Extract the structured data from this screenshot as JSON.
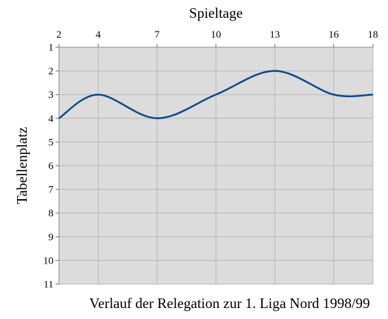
{
  "chart_data": {
    "type": "line",
    "title": "",
    "caption": "Verlauf der Relegation zur 1. Liga Nord 1998/99",
    "xlabel": "Spieltage",
    "ylabel": "Tabellenplatz",
    "x_ticks": [
      "2",
      "4",
      "7",
      "10",
      "13",
      "16",
      "18"
    ],
    "y_ticks": [
      "1",
      "2",
      "3",
      "4",
      "5",
      "6",
      "7",
      "8",
      "9",
      "10",
      "11"
    ],
    "xlim": [
      2,
      18
    ],
    "ylim": [
      1,
      11
    ],
    "y_inverted": true,
    "x_axis_position": "top",
    "grid": true,
    "plot_background": "#dcdcdc",
    "line_color": "#0b4a8a",
    "series": [
      {
        "x": [
          2,
          4,
          7,
          10,
          13,
          16,
          18
        ],
        "values": [
          4,
          3,
          4,
          3,
          2,
          3,
          3
        ]
      }
    ]
  }
}
